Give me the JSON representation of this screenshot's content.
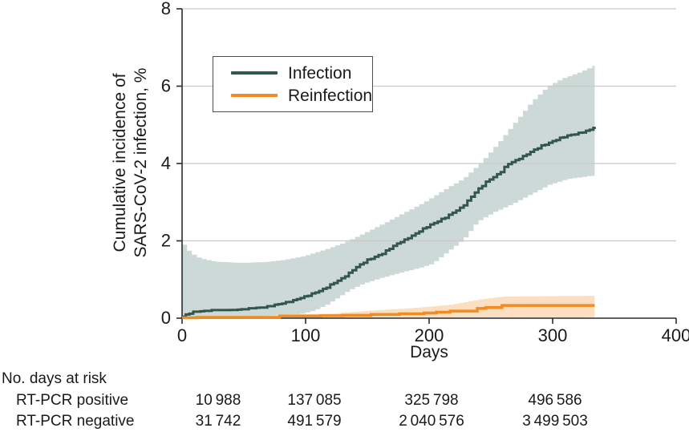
{
  "figure": {
    "colors": {
      "infection_line": "#335550",
      "infection_band": "#cdd9d6",
      "reinfection_line": "#f08c21",
      "reinfection_band": "#fbdfc0",
      "gridline": "#c9c9c9",
      "axis": "#2b2b2b",
      "text": "#1a1a1a",
      "legend_border": "#4d4d4d"
    }
  },
  "chart_data": {
    "type": "line",
    "title": "",
    "xlabel": "Days",
    "ylabel_lines": [
      "Cumulative incidence of",
      "SARS-CoV-2 infection, %"
    ],
    "xlim": [
      0,
      400
    ],
    "ylim": [
      0,
      8
    ],
    "x_ticks": [
      0,
      100,
      200,
      300,
      400
    ],
    "y_ticks": [
      0,
      2,
      4,
      6,
      8
    ],
    "grid": "horizontal",
    "legend_position": "upper-left",
    "legend": [
      {
        "label": "Infection",
        "color": "#335550"
      },
      {
        "label": "Reinfection",
        "color": "#f08c21"
      }
    ],
    "series": [
      {
        "name": "Infection",
        "style": "step",
        "color": "#335550",
        "band_color": "#cdd9d6",
        "points": [
          [
            0,
            0.04
          ],
          [
            4,
            0.1
          ],
          [
            10,
            0.16
          ],
          [
            20,
            0.19
          ],
          [
            40,
            0.21
          ],
          [
            55,
            0.24
          ],
          [
            70,
            0.3
          ],
          [
            85,
            0.42
          ],
          [
            100,
            0.56
          ],
          [
            115,
            0.76
          ],
          [
            130,
            1.05
          ],
          [
            140,
            1.3
          ],
          [
            150,
            1.5
          ],
          [
            162,
            1.67
          ],
          [
            175,
            1.95
          ],
          [
            187,
            2.15
          ],
          [
            200,
            2.4
          ],
          [
            213,
            2.6
          ],
          [
            227,
            2.9
          ],
          [
            237,
            3.25
          ],
          [
            247,
            3.55
          ],
          [
            257,
            3.75
          ],
          [
            263,
            3.97
          ],
          [
            272,
            4.12
          ],
          [
            282,
            4.3
          ],
          [
            292,
            4.47
          ],
          [
            302,
            4.6
          ],
          [
            312,
            4.72
          ],
          [
            322,
            4.8
          ],
          [
            330,
            4.87
          ],
          [
            334,
            4.95
          ]
        ],
        "band_upper": [
          [
            0,
            1.9
          ],
          [
            3,
            1.78
          ],
          [
            6,
            1.68
          ],
          [
            13,
            1.55
          ],
          [
            26,
            1.46
          ],
          [
            45,
            1.43
          ],
          [
            65,
            1.45
          ],
          [
            80,
            1.5
          ],
          [
            97,
            1.6
          ],
          [
            115,
            1.78
          ],
          [
            130,
            1.95
          ],
          [
            145,
            2.18
          ],
          [
            162,
            2.45
          ],
          [
            180,
            2.75
          ],
          [
            195,
            3.0
          ],
          [
            210,
            3.3
          ],
          [
            227,
            3.62
          ],
          [
            240,
            4.0
          ],
          [
            254,
            4.5
          ],
          [
            268,
            5.05
          ],
          [
            282,
            5.6
          ],
          [
            295,
            6.0
          ],
          [
            307,
            6.2
          ],
          [
            320,
            6.35
          ],
          [
            334,
            6.55
          ]
        ],
        "band_lower": [
          [
            0,
            0.02
          ],
          [
            40,
            0.03
          ],
          [
            70,
            0.05
          ],
          [
            90,
            0.08
          ],
          [
            100,
            0.12
          ],
          [
            110,
            0.2
          ],
          [
            120,
            0.35
          ],
          [
            130,
            0.55
          ],
          [
            138,
            0.72
          ],
          [
            150,
            0.9
          ],
          [
            165,
            1.05
          ],
          [
            180,
            1.18
          ],
          [
            195,
            1.3
          ],
          [
            205,
            1.4
          ],
          [
            217,
            1.7
          ],
          [
            231,
            2.05
          ],
          [
            242,
            2.5
          ],
          [
            256,
            2.75
          ],
          [
            270,
            2.95
          ],
          [
            285,
            3.2
          ],
          [
            300,
            3.45
          ],
          [
            315,
            3.6
          ],
          [
            334,
            3.68
          ]
        ]
      },
      {
        "name": "Reinfection",
        "style": "step-exact",
        "color": "#f08c21",
        "band_color": "#fbdfc0",
        "points": [
          [
            0,
            0.01
          ],
          [
            12,
            0.02
          ],
          [
            79,
            0.055
          ],
          [
            112,
            0.065
          ],
          [
            130,
            0.075
          ],
          [
            153,
            0.095
          ],
          [
            176,
            0.115
          ],
          [
            196,
            0.135
          ],
          [
            206,
            0.155
          ],
          [
            217,
            0.185
          ],
          [
            239,
            0.25
          ],
          [
            246,
            0.275
          ],
          [
            259,
            0.33
          ],
          [
            334,
            0.33
          ]
        ],
        "band_upper": [
          [
            0,
            0.02
          ],
          [
            60,
            0.03
          ],
          [
            79,
            0.1
          ],
          [
            120,
            0.12
          ],
          [
            153,
            0.2
          ],
          [
            180,
            0.25
          ],
          [
            200,
            0.3
          ],
          [
            217,
            0.35
          ],
          [
            239,
            0.48
          ],
          [
            259,
            0.56
          ],
          [
            334,
            0.58
          ]
        ],
        "band_lower": [
          [
            0,
            0.005
          ],
          [
            334,
            0.02
          ]
        ]
      }
    ]
  },
  "risk_table": {
    "title": "No. days at risk",
    "rows": [
      {
        "label": "RT-PCR positive",
        "values": [
          "10 988",
          "137 085",
          "325 798",
          "496 586"
        ]
      },
      {
        "label": "RT-PCR negative",
        "values": [
          "31 742",
          "491 579",
          "2 040 576",
          "3 499 503"
        ]
      }
    ]
  }
}
